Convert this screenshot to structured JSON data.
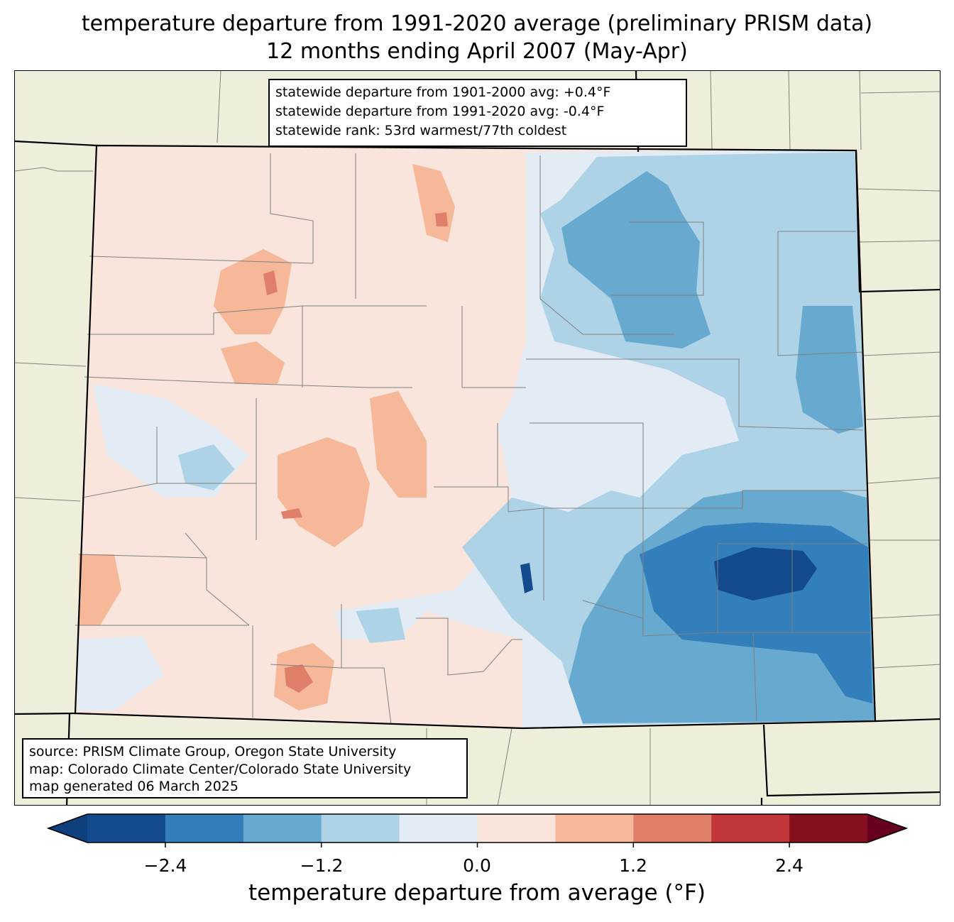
{
  "title": {
    "line1": "temperature departure from 1991-2020 average (preliminary PRISM data)",
    "line2": "12 months ending April 2007 (May-Apr)"
  },
  "stats": {
    "line1": "statewide departure from 1901-2000 avg: +0.4°F",
    "line2": "statewide departure from 1991-2020 avg: -0.4°F",
    "line3": "statewide rank: 53rd warmest/77th coldest"
  },
  "source": {
    "line1": "source: PRISM Climate Group, Oregon State University",
    "line2": "map: Colorado Climate Center/Colorado State University",
    "line3": "map generated 06 March 2025"
  },
  "colorbar": {
    "label": "temperature departure from average (°F)",
    "ticks": [
      "−2.4",
      "−1.2",
      "0.0",
      "1.2",
      "2.4"
    ],
    "colors": [
      "#0e3f7d",
      "#124a8c",
      "#327fbb",
      "#67a9cf",
      "#afd3e6",
      "#e3ecf4",
      "#f9e5dc",
      "#f6b899",
      "#e07f69",
      "#c1373a",
      "#87101f",
      "#67001f"
    ],
    "range": [
      -3.0,
      3.0
    ],
    "step": 0.6
  },
  "map_colors": {
    "land_outside": "#efeedb",
    "state_border": "#000000",
    "county_border": "#808080"
  }
}
